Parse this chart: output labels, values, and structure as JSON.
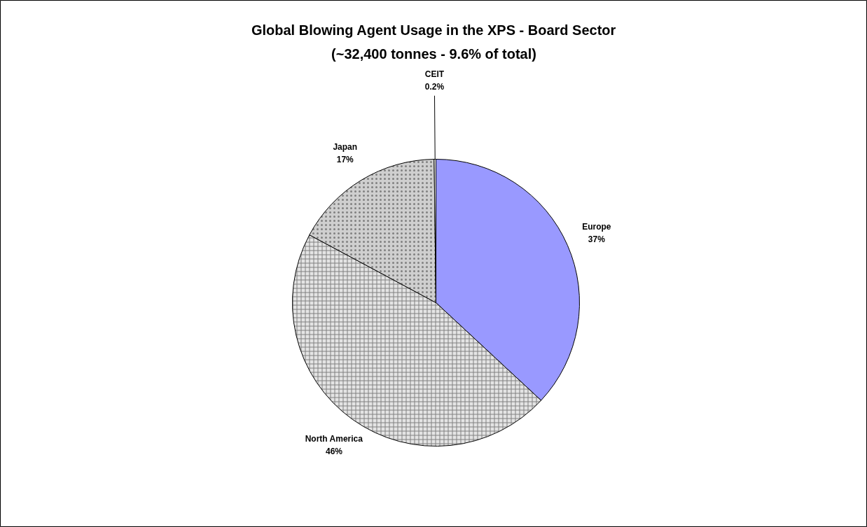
{
  "chart_data": {
    "type": "pie",
    "title": "Global Blowing Agent Usage in the XPS - Board Sector",
    "subtitle": "(~32,400 tonnes - 9.6% of total)",
    "categories": [
      "Europe",
      "North America",
      "Japan",
      "CEIT"
    ],
    "values": [
      37,
      46,
      17,
      0.2
    ],
    "colors": [
      "#9999ff",
      "#e4e4e4",
      "#cfcfcf",
      "#ffffff"
    ],
    "value_labels": [
      "37%",
      "46%",
      "17%",
      "0.2%"
    ]
  }
}
